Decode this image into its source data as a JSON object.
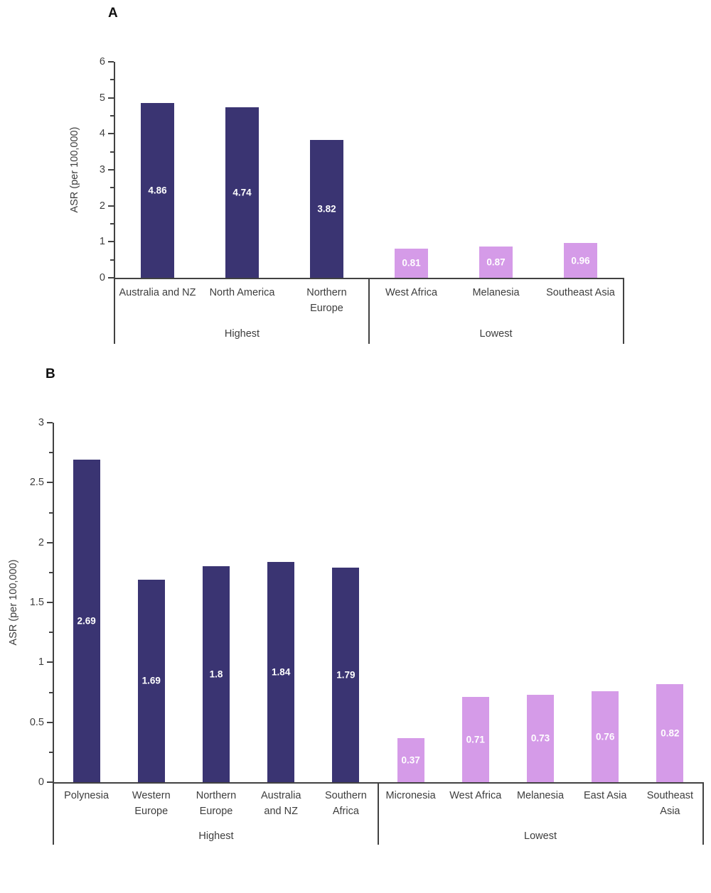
{
  "figure": {
    "background": "#ffffff",
    "bar_value_text_color": "#ffffff",
    "axis_color": "#424242",
    "highest_bar_color": "#3a3472",
    "lowest_bar_color": "#d59be8"
  },
  "chart_data": [
    {
      "type": "bar",
      "panel_label": "A",
      "title": "",
      "xlabel": "",
      "ylabel": "ASR (per 100,000)",
      "ylim": [
        0,
        6
      ],
      "ymax": 6,
      "major_step": 1,
      "minor_step": 0.5,
      "grid": false,
      "legend": false,
      "tick_labels": [
        "0",
        "1",
        "2",
        "3",
        "4",
        "5",
        "6"
      ],
      "groups": [
        {
          "label": "Highest",
          "color": "#3a3472",
          "categories": [
            "Australia and NZ",
            "North America",
            "Northern\nEurope"
          ],
          "values": [
            4.86,
            4.74,
            3.82
          ]
        },
        {
          "label": "Lowest",
          "color": "#d59be8",
          "categories": [
            "West Africa",
            "Melanesia",
            "Southeast Asia"
          ],
          "values": [
            0.81,
            0.87,
            0.96
          ]
        }
      ]
    },
    {
      "type": "bar",
      "panel_label": "B",
      "title": "",
      "xlabel": "",
      "ylabel": "ASR (per 100,000)",
      "ylim": [
        0,
        3
      ],
      "ymax": 3,
      "major_step": 0.5,
      "minor_step": 0.25,
      "grid": false,
      "legend": false,
      "tick_labels": [
        "0",
        "0.5",
        "1",
        "1.5",
        "2",
        "2.5",
        "3"
      ],
      "groups": [
        {
          "label": "Highest",
          "color": "#3a3472",
          "categories": [
            "Polynesia",
            "Western\nEurope",
            "Northern\nEurope",
            "Australia\nand NZ",
            "Southern\nAfrica"
          ],
          "values": [
            2.69,
            1.69,
            1.8,
            1.84,
            1.79
          ]
        },
        {
          "label": "Lowest",
          "color": "#d59be8",
          "categories": [
            "Micronesia",
            "West Africa",
            "Melanesia",
            "East Asia",
            "Southeast\nAsia"
          ],
          "values": [
            0.37,
            0.71,
            0.73,
            0.76,
            0.82
          ]
        }
      ]
    }
  ]
}
